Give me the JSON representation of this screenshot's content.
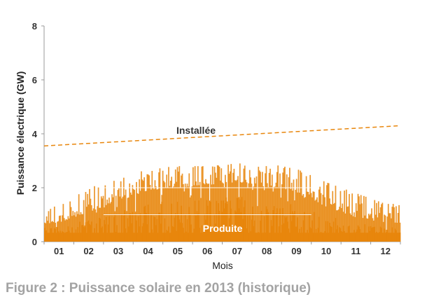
{
  "caption": "Figure 2 : Puissance solaire en 2013 (historique)",
  "colors": {
    "production": "#e8860c",
    "installed": "#e8860c",
    "axis": "#999999",
    "label_inside": "#ffffff",
    "label_installed": "#333333"
  },
  "chart_data": {
    "type": "area",
    "xlabel": "Mois",
    "ylabel": "Puissance électrique (GW)",
    "ylim": [
      0,
      8
    ],
    "yticks": [
      "0",
      "2",
      "4",
      "6",
      "8"
    ],
    "categories": [
      "01",
      "02",
      "03",
      "04",
      "05",
      "06",
      "07",
      "08",
      "09",
      "10",
      "11",
      "12"
    ],
    "grid": false,
    "series": [
      {
        "name": "Installée",
        "style": "dashed-line",
        "start": 3.55,
        "end": 4.3
      },
      {
        "name": "Produite",
        "style": "filled-area",
        "monthly_peak": [
          1.3,
          2.0,
          2.3,
          2.7,
          2.8,
          2.8,
          2.9,
          2.9,
          2.7,
          2.2,
          1.8,
          1.4
        ],
        "monthly_mean": [
          0.7,
          1.1,
          1.5,
          1.9,
          2.0,
          2.1,
          2.2,
          2.1,
          1.8,
          1.3,
          0.9,
          0.7
        ],
        "reference_lines": [
          1,
          2
        ]
      }
    ]
  }
}
